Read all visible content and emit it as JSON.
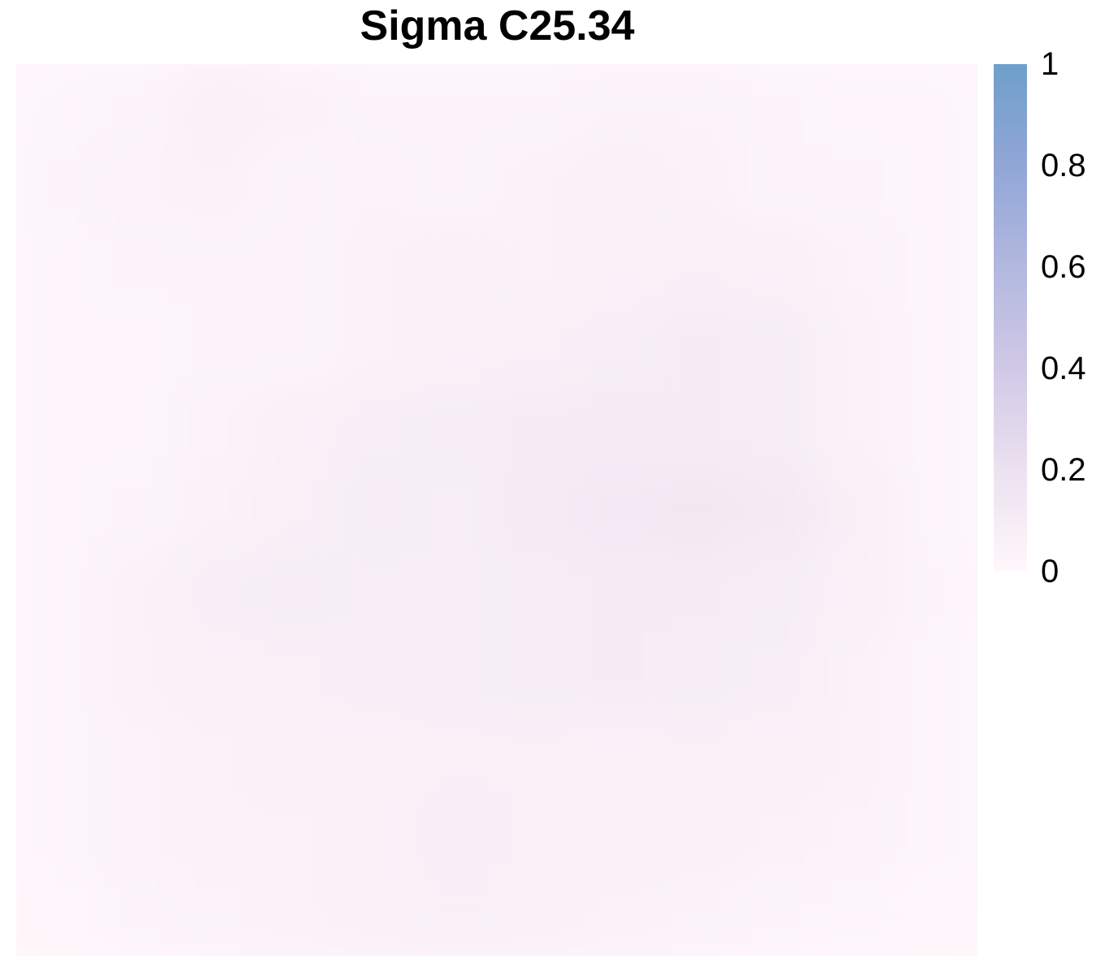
{
  "chart_data": {
    "type": "heatmap",
    "title": "Sigma C25.34",
    "xlabel": "",
    "ylabel": "",
    "grid": false,
    "legend_position": "right",
    "colorbar": {
      "min": 0,
      "max": 1,
      "ticks": [
        0,
        0.2,
        0.4,
        0.6,
        0.8,
        1
      ],
      "tick_labels": [
        "0",
        "0.2",
        "0.4",
        "0.6",
        "0.8",
        "1"
      ],
      "colors": [
        "#fff7fb",
        "#ece1f0",
        "#d0c8e6",
        "#b2b8df",
        "#91a6d6",
        "#6f9fcb"
      ]
    },
    "rows": 11,
    "cols": 12,
    "values": [
      [
        0.02,
        0.03,
        0.06,
        0.05,
        0.03,
        0.03,
        0.03,
        0.04,
        0.04,
        0.03,
        0.02,
        0.02
      ],
      [
        0.03,
        0.04,
        0.05,
        0.03,
        0.04,
        0.03,
        0.05,
        0.06,
        0.05,
        0.03,
        0.03,
        0.02
      ],
      [
        0.02,
        0.03,
        0.03,
        0.03,
        0.05,
        0.06,
        0.05,
        0.06,
        0.07,
        0.06,
        0.04,
        0.02
      ],
      [
        0.02,
        0.02,
        0.03,
        0.03,
        0.05,
        0.06,
        0.07,
        0.08,
        0.1,
        0.09,
        0.05,
        0.02
      ],
      [
        0.02,
        0.02,
        0.04,
        0.06,
        0.08,
        0.09,
        0.1,
        0.11,
        0.1,
        0.09,
        0.05,
        0.02
      ],
      [
        0.02,
        0.03,
        0.05,
        0.07,
        0.09,
        0.08,
        0.11,
        0.13,
        0.14,
        0.12,
        0.07,
        0.02
      ],
      [
        0.02,
        0.05,
        0.08,
        0.09,
        0.08,
        0.08,
        0.09,
        0.1,
        0.1,
        0.09,
        0.06,
        0.03
      ],
      [
        0.02,
        0.05,
        0.06,
        0.07,
        0.08,
        0.08,
        0.09,
        0.1,
        0.09,
        0.08,
        0.05,
        0.02
      ],
      [
        0.02,
        0.04,
        0.05,
        0.06,
        0.06,
        0.07,
        0.07,
        0.06,
        0.07,
        0.06,
        0.05,
        0.02
      ],
      [
        0.02,
        0.04,
        0.05,
        0.05,
        0.06,
        0.08,
        0.07,
        0.06,
        0.06,
        0.05,
        0.04,
        0.02
      ],
      [
        0.01,
        0.03,
        0.04,
        0.05,
        0.06,
        0.07,
        0.06,
        0.05,
        0.04,
        0.03,
        0.02,
        0.01
      ]
    ]
  }
}
